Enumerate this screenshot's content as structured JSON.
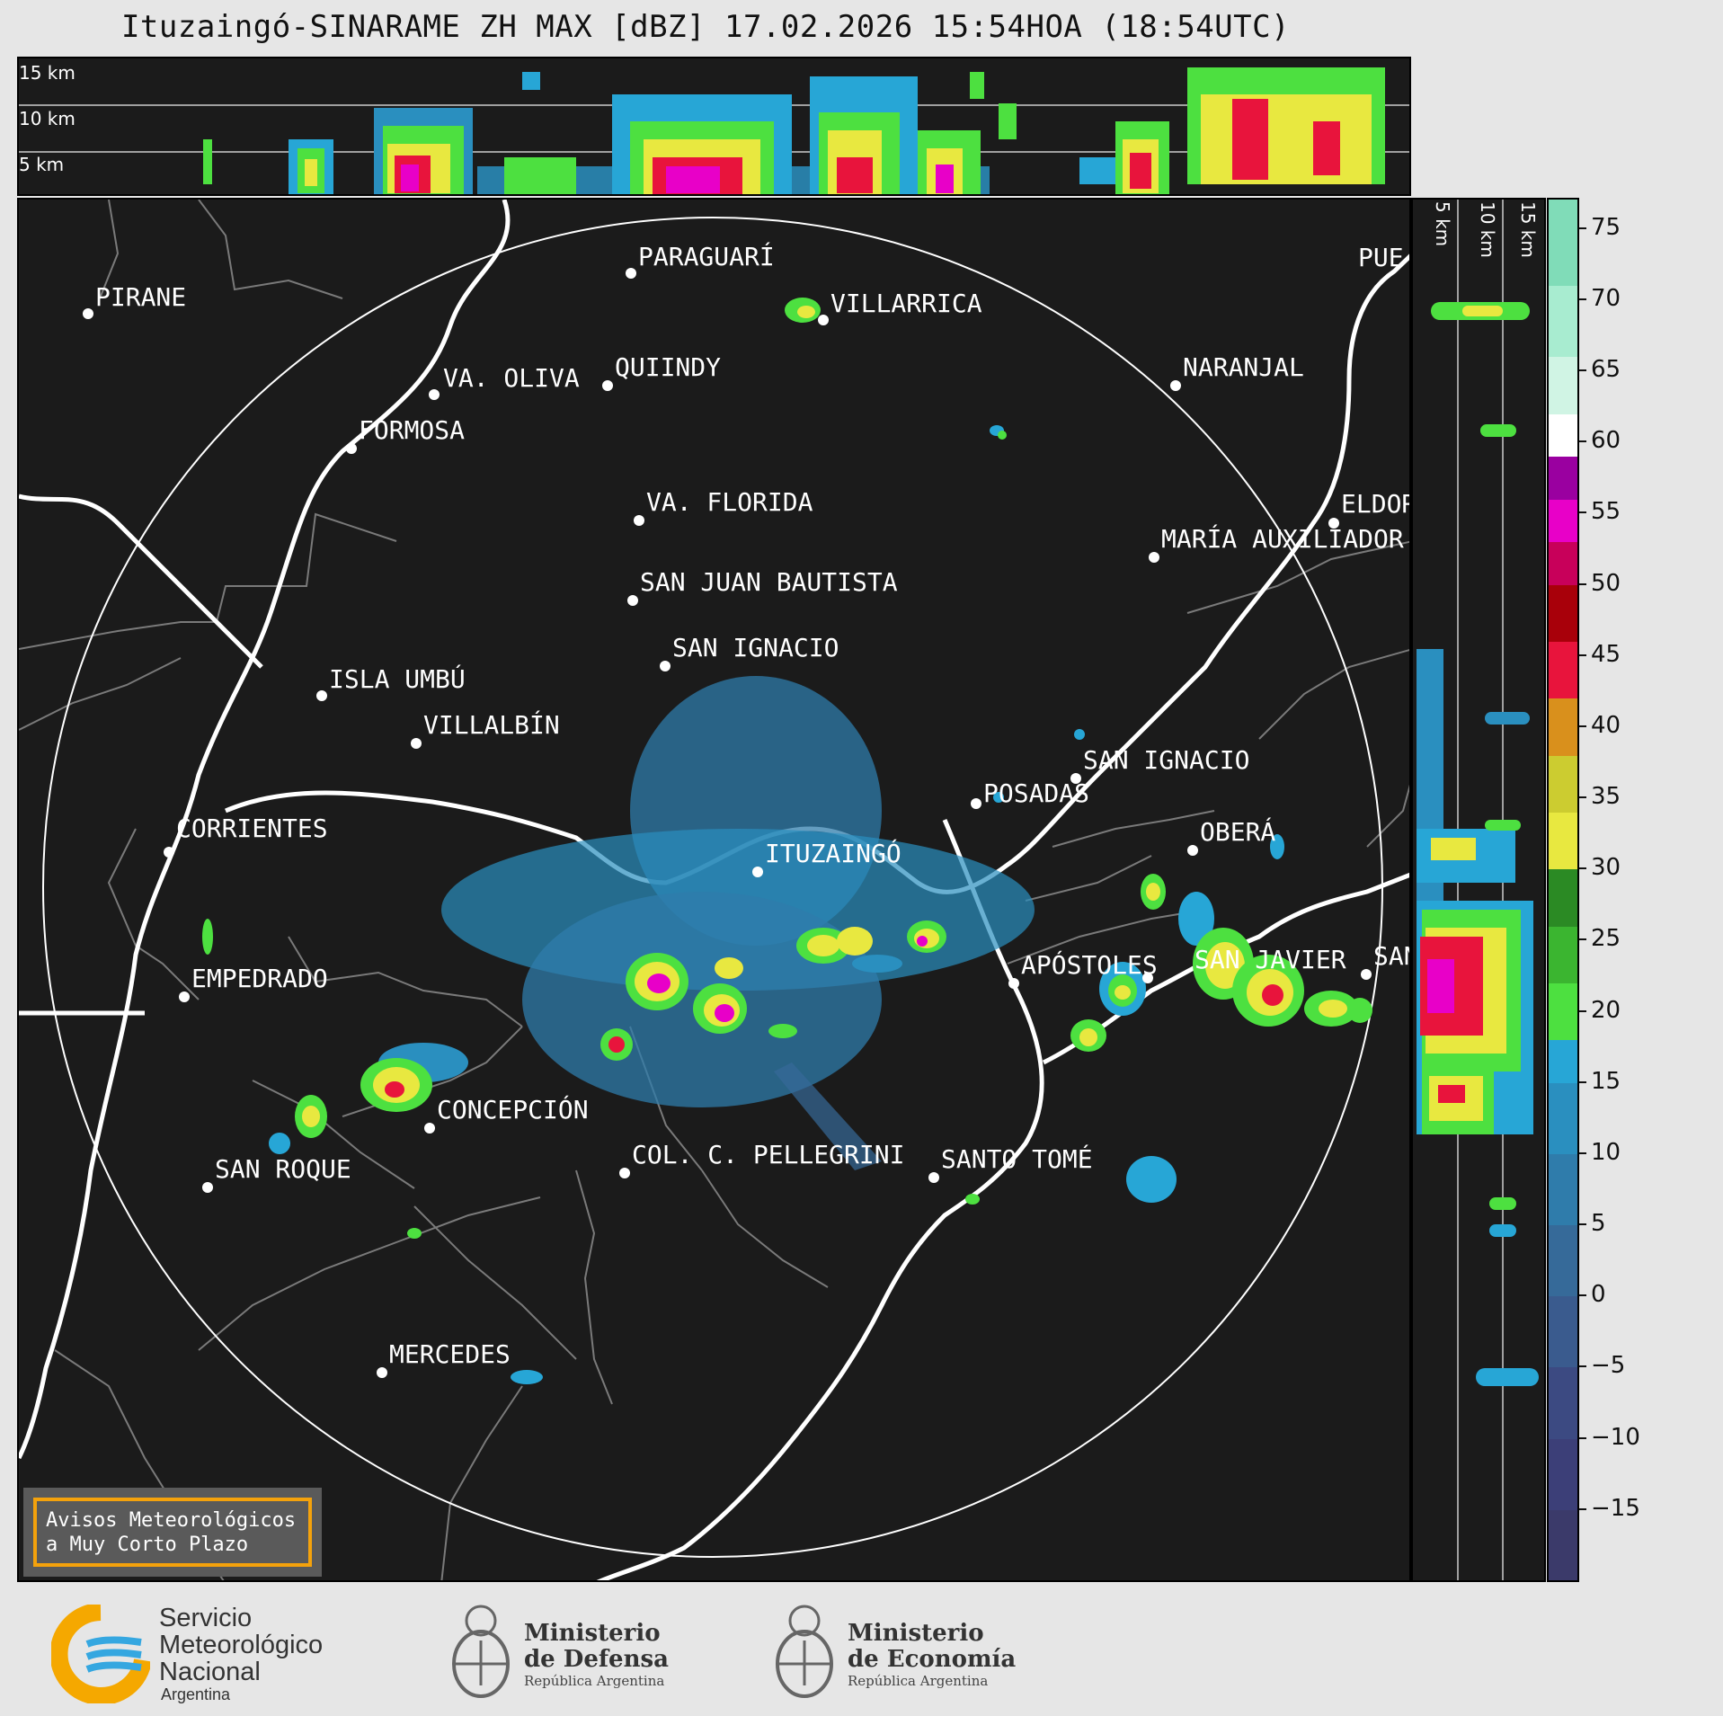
{
  "title": "Ituzaingó-SINARAME ZH MAX [dBZ] 17.02.2026 15:54HOA (18:54UTC)",
  "xsection_top": {
    "height_labels": [
      "15 km",
      "10 km",
      "5 km"
    ]
  },
  "xsection_right": {
    "height_labels": [
      "5 km",
      "10 km",
      "15 km"
    ]
  },
  "cities": [
    {
      "name": "PIRANE"
    },
    {
      "name": "PARAGUARÍ"
    },
    {
      "name": "VILLARRICA"
    },
    {
      "name": "VA. OLIVA"
    },
    {
      "name": "QUIINDY"
    },
    {
      "name": "FORMOSA"
    },
    {
      "name": "NARANJAL"
    },
    {
      "name": "VA. FLORIDA"
    },
    {
      "name": "ELDOR"
    },
    {
      "name": "MARÍA AUXILIADOR"
    },
    {
      "name": "SAN JUAN BAUTISTA"
    },
    {
      "name": "SAN IGNACIO"
    },
    {
      "name": "ISLA UMBÚ"
    },
    {
      "name": "VILLALBÍN"
    },
    {
      "name": "SAN IGNACIO"
    },
    {
      "name": "POSADAS"
    },
    {
      "name": "CORRIENTES"
    },
    {
      "name": "ITUZAINGÓ"
    },
    {
      "name": "OBERÁ"
    },
    {
      "name": "EMPEDRADO"
    },
    {
      "name": "APÓSTOLES"
    },
    {
      "name": "SAN JAVIER"
    },
    {
      "name": "SAN"
    },
    {
      "name": "CONCEPCIÓN"
    },
    {
      "name": "COL. C. PELLEGRINI"
    },
    {
      "name": "SANTO TOMÉ"
    },
    {
      "name": "SAN ROQUE"
    },
    {
      "name": "MERCEDES"
    },
    {
      "name": "PUE"
    }
  ],
  "colorbar": {
    "unit": "dBZ",
    "min": -20,
    "max": 77,
    "tick_labels": [
      "75",
      "70",
      "65",
      "60",
      "55",
      "50",
      "45",
      "40",
      "35",
      "30",
      "25",
      "20",
      "15",
      "10",
      "5",
      "0",
      "−5",
      "−10",
      "−15"
    ],
    "bands": [
      {
        "from": -20,
        "to": -15,
        "color": "#3b3a6a"
      },
      {
        "from": -15,
        "to": -10,
        "color": "#3c3f78"
      },
      {
        "from": -10,
        "to": -5,
        "color": "#3c4a82"
      },
      {
        "from": -5,
        "to": 0,
        "color": "#3a5b8e"
      },
      {
        "from": 0,
        "to": 5,
        "color": "#366a99"
      },
      {
        "from": 5,
        "to": 10,
        "color": "#2f7cab"
      },
      {
        "from": 10,
        "to": 15,
        "color": "#2a8fbf"
      },
      {
        "from": 15,
        "to": 18,
        "color": "#27a6d6"
      },
      {
        "from": 18,
        "to": 22,
        "color": "#4de040"
      },
      {
        "from": 22,
        "to": 26,
        "color": "#3bb530"
      },
      {
        "from": 26,
        "to": 30,
        "color": "#2b8a24"
      },
      {
        "from": 30,
        "to": 34,
        "color": "#e8e840"
      },
      {
        "from": 34,
        "to": 38,
        "color": "#cccc30"
      },
      {
        "from": 38,
        "to": 42,
        "color": "#d9901c"
      },
      {
        "from": 42,
        "to": 46,
        "color": "#e8143c"
      },
      {
        "from": 46,
        "to": 50,
        "color": "#a8000a"
      },
      {
        "from": 50,
        "to": 53,
        "color": "#c8005a"
      },
      {
        "from": 53,
        "to": 56,
        "color": "#e800c8"
      },
      {
        "from": 56,
        "to": 59,
        "color": "#9a00a0"
      },
      {
        "from": 59,
        "to": 62,
        "color": "#ffffff"
      },
      {
        "from": 62,
        "to": 66,
        "color": "#d0f4e4"
      },
      {
        "from": 66,
        "to": 71,
        "color": "#a8ecd0"
      },
      {
        "from": 71,
        "to": 77,
        "color": "#80dcb8"
      }
    ]
  },
  "avisos": {
    "line1": "Avisos Meteorológicos",
    "line2": "a Muy Corto Plazo"
  },
  "logos": {
    "smn": {
      "line1": "Servicio",
      "line2": "Meteorológico",
      "line3": "Nacional",
      "sub": "Argentina",
      "colors": [
        "#f5a800",
        "#35a7e0"
      ]
    },
    "defensa": {
      "line1": "Ministerio",
      "line2": "de Defensa",
      "sub": "República Argentina"
    },
    "economia": {
      "line1": "Ministerio",
      "line2": "de Economía",
      "sub": "República Argentina"
    }
  }
}
